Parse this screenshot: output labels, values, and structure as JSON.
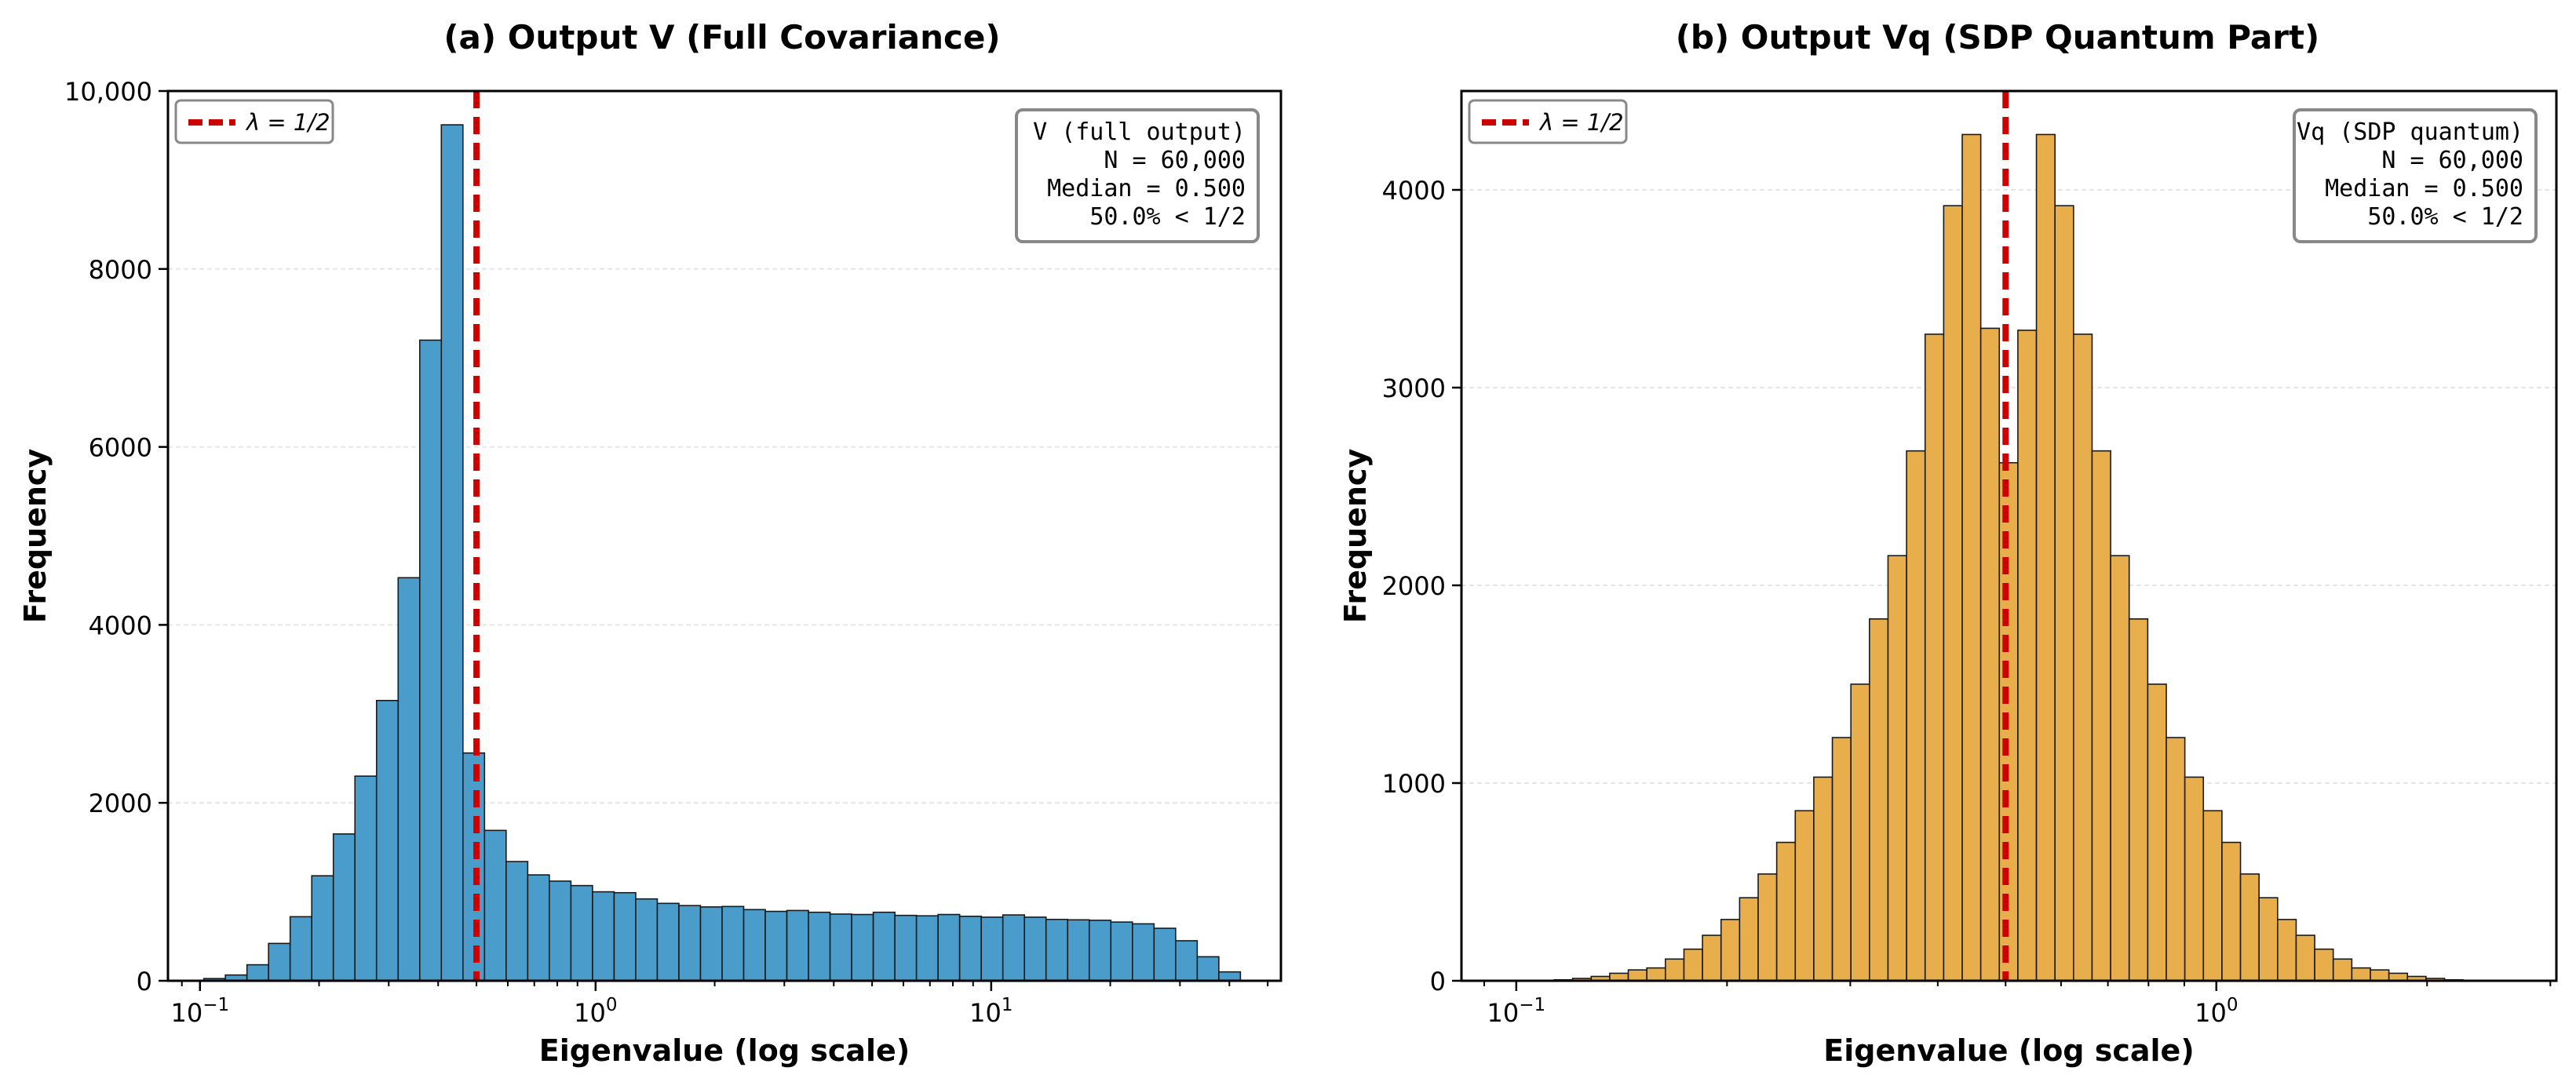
{
  "colors": {
    "left_fill": "#4a9ccb",
    "right_fill": "#e7ae4b",
    "bar_edge": "#1a1a1a",
    "ref_line": "#cc0000",
    "grid": "#e6e6e6"
  },
  "chart_data": [
    {
      "type": "bar",
      "title": "(a) Output V (Full Covariance)",
      "xlabel": "Eigenvalue (log scale)",
      "ylabel": "Frequency",
      "xscale": "log",
      "xlim": [
        0.083,
        54
      ],
      "ylim": [
        0,
        10000
      ],
      "yticks": [
        0,
        2000,
        4000,
        6000,
        8000,
        10000
      ],
      "ytick_labels": [
        "0",
        "2000",
        "4000",
        "6000",
        "8000",
        "10,000"
      ],
      "xticks": [
        0.1,
        1,
        10
      ],
      "xtick_labels": [
        [
          "10",
          "−1"
        ],
        [
          "10",
          "0"
        ],
        [
          "10",
          "1"
        ]
      ],
      "bins": {
        "log_min": -1.045,
        "log_max": 1.63
      },
      "values": [
        4,
        25,
        65,
        180,
        420,
        720,
        1180,
        1650,
        2300,
        3150,
        4530,
        7200,
        9620,
        2560,
        1690,
        1340,
        1190,
        1120,
        1070,
        1000,
        990,
        920,
        870,
        845,
        830,
        835,
        800,
        780,
        790,
        770,
        750,
        745,
        770,
        735,
        730,
        745,
        725,
        715,
        740,
        715,
        690,
        685,
        680,
        660,
        640,
        590,
        450,
        270,
        100
      ],
      "reference_line": {
        "x": 0.5,
        "legend_label": "λ = 1/2"
      },
      "stats_box": [
        "V (full output)",
        "N = 60,000",
        "Median = 0.500",
        "50.0% < 1/2"
      ]
    },
    {
      "type": "bar",
      "title": "(b) Output Vq (SDP Quantum Part)",
      "xlabel": "Eigenvalue (log scale)",
      "ylabel": "Frequency",
      "xscale": "log",
      "xlim": [
        0.0835,
        3.06
      ],
      "ylim": [
        0,
        4500
      ],
      "yticks": [
        0,
        1000,
        2000,
        3000,
        4000
      ],
      "ytick_labels": [
        "0",
        "1000",
        "2000",
        "3000",
        "4000"
      ],
      "xticks": [
        0.1,
        1
      ],
      "xtick_labels": [
        [
          "10",
          "−1"
        ],
        [
          "10",
          "0"
        ]
      ],
      "bins": {
        "log_min": -0.9725,
        "log_max": 0.3525
      },
      "values": [
        2,
        5,
        12,
        22,
        38,
        55,
        65,
        110,
        160,
        230,
        310,
        420,
        540,
        700,
        860,
        1030,
        1230,
        1500,
        1830,
        2150,
        2680,
        3270,
        3920,
        4280,
        3300,
        2620,
        3290,
        4280,
        3920,
        3270,
        2680,
        2150,
        1830,
        1500,
        1230,
        1030,
        860,
        700,
        540,
        420,
        310,
        230,
        160,
        110,
        65,
        55,
        38,
        22,
        12,
        5
      ],
      "reference_line": {
        "x": 0.5,
        "legend_label": "λ = 1/2"
      },
      "stats_box": [
        "Vq (SDP quantum)",
        "N = 60,000",
        "Median = 0.500",
        "50.0% < 1/2"
      ]
    }
  ]
}
